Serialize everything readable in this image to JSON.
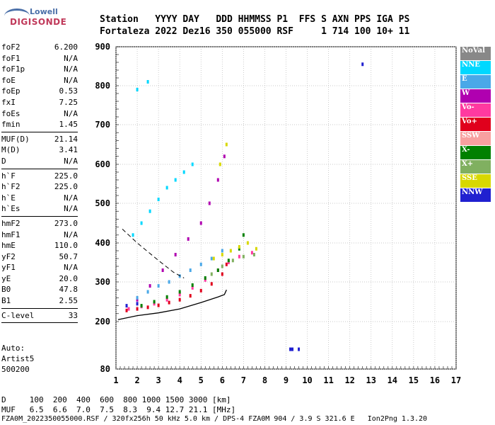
{
  "logo": {
    "top": "Lowell",
    "bottom": "DIGISONDE"
  },
  "header": {
    "line1": "Station   YYYY DAY   DDD HHMMSS P1  FFS S AXN PPS IGA PS",
    "line2": "Fortaleza 2022 Dez16 350 055000 RSF     1 714 100 10+ 11"
  },
  "params": [
    {
      "k": "foF2",
      "v": "6.200"
    },
    {
      "k": "foF1",
      "v": "N/A"
    },
    {
      "k": "foF1p",
      "v": "N/A"
    },
    {
      "k": "foE",
      "v": "N/A"
    },
    {
      "k": "foEp",
      "v": "0.53"
    },
    {
      "k": "fxI",
      "v": "7.25"
    },
    {
      "k": "foEs",
      "v": "N/A"
    },
    {
      "k": "fmin",
      "v": "1.45"
    },
    {
      "sep": true
    },
    {
      "k": "MUF(D)",
      "v": "21.14"
    },
    {
      "k": "M(D)",
      "v": "3.41"
    },
    {
      "k": "D",
      "v": "N/A"
    },
    {
      "sep": true
    },
    {
      "k": "h`F",
      "v": "225.0"
    },
    {
      "k": "h`F2",
      "v": "225.0"
    },
    {
      "k": "h`E",
      "v": "N/A"
    },
    {
      "k": "h`Es",
      "v": "N/A"
    },
    {
      "sep": true
    },
    {
      "k": "hmF2",
      "v": "273.0"
    },
    {
      "k": "hmF1",
      "v": "N/A"
    },
    {
      "k": "hmE",
      "v": "110.0"
    },
    {
      "k": "yF2",
      "v": "50.7"
    },
    {
      "k": "yF1",
      "v": "N/A"
    },
    {
      "k": "yE",
      "v": "20.0"
    },
    {
      "k": "B0",
      "v": "47.8"
    },
    {
      "k": "B1",
      "v": "2.55"
    },
    {
      "sep": true
    },
    {
      "k": "C-level",
      "v": "33"
    },
    {
      "sep": true
    }
  ],
  "auto": {
    "line1": "Auto:",
    "line2": "Artist5",
    "line3": "500200"
  },
  "legend": [
    {
      "label": "NoVal",
      "color": "#888888"
    },
    {
      "label": "NNE",
      "color": "#00d8ff"
    },
    {
      "label": "E",
      "color": "#4aa8e8"
    },
    {
      "label": "W",
      "color": "#b000b0"
    },
    {
      "label": "Vo-",
      "color": "#ff3aa0"
    },
    {
      "label": "Vo+",
      "color": "#e0001c"
    },
    {
      "label": "SSW",
      "color": "#f8a0a0"
    },
    {
      "label": "X-",
      "color": "#008000"
    },
    {
      "label": "X+",
      "color": "#80b060"
    },
    {
      "label": "SSE",
      "color": "#d8d800"
    },
    {
      "label": "NNW",
      "color": "#2020d0"
    }
  ],
  "footer": {
    "line1": "D     100  200  400  600  800 1000 1500 3000 [km]",
    "line2": "MUF   6.5  6.6  7.0  7.5  8.3  9.4 12.7 21.1 [MHz]",
    "line3": "FZA0M_2022350055000.RSF / 320fx256h 50 kHz 5.0 km / DPS-4 FZA0M 904 / 3.9 S 321.6 E   Ion2Png 1.3.20"
  },
  "chart_data": {
    "type": "scatter",
    "xlabel": "",
    "ylabel": "",
    "xlim": [
      1,
      17
    ],
    "ylim": [
      80,
      900
    ],
    "xticks": [
      1,
      2,
      3,
      4,
      5,
      6,
      7,
      8,
      9,
      10,
      11,
      12,
      13,
      14,
      15,
      16,
      17
    ],
    "yticks": [
      80,
      200,
      300,
      400,
      500,
      600,
      700,
      800,
      900
    ],
    "grid": true,
    "profile": {
      "name": "",
      "x": [
        1.1,
        2.0,
        3.0,
        4.0,
        5.0,
        5.8,
        6.1,
        6.2
      ],
      "y": [
        205,
        215,
        222,
        232,
        248,
        262,
        268,
        280
      ]
    },
    "dashed_profile": {
      "x": [
        1.3,
        2.0,
        3.0,
        3.7,
        4.2
      ],
      "y": [
        435,
        400,
        355,
        325,
        310
      ]
    },
    "series": [
      {
        "name": "Vo+",
        "x": [
          1.5,
          2.0,
          2.5,
          3.0,
          3.5,
          4.0,
          4.5,
          5.0,
          5.5,
          6.0,
          6.2
        ],
        "y": [
          228,
          232,
          236,
          241,
          248,
          255,
          265,
          278,
          295,
          320,
          345
        ]
      },
      {
        "name": "Vo-",
        "x": [
          1.6,
          2.2,
          2.8,
          3.4,
          4.0,
          4.6,
          5.2,
          5.8,
          6.3,
          6.8,
          7.4
        ],
        "y": [
          232,
          238,
          245,
          255,
          268,
          285,
          305,
          330,
          350,
          365,
          375
        ]
      },
      {
        "name": "W",
        "x": [
          2.0,
          2.6,
          3.2,
          3.8,
          4.4,
          5.0,
          5.4,
          5.8,
          6.1
        ],
        "y": [
          255,
          290,
          330,
          370,
          410,
          450,
          500,
          560,
          620
        ]
      },
      {
        "name": "X-",
        "x": [
          2.2,
          2.8,
          3.4,
          4.0,
          4.6,
          5.2,
          5.8,
          6.3,
          6.8,
          7.0
        ],
        "y": [
          240,
          250,
          262,
          275,
          292,
          310,
          330,
          355,
          385,
          420
        ]
      },
      {
        "name": "E",
        "x": [
          2.0,
          2.5,
          3.0,
          3.5,
          4.0,
          4.5,
          5.0,
          5.5,
          6.0
        ],
        "y": [
          260,
          275,
          290,
          300,
          315,
          330,
          345,
          360,
          380
        ]
      },
      {
        "name": "SSE",
        "x": [
          5.6,
          6.0,
          6.4,
          6.8,
          7.2,
          7.6,
          5.9,
          6.2
        ],
        "y": [
          360,
          370,
          380,
          390,
          400,
          385,
          600,
          650
        ]
      },
      {
        "name": "NNE",
        "x": [
          1.8,
          2.2,
          2.6,
          3.0,
          3.4,
          3.8,
          4.2,
          4.6,
          2.0,
          2.5
        ],
        "y": [
          420,
          450,
          480,
          510,
          540,
          560,
          580,
          600,
          790,
          810
        ]
      },
      {
        "name": "NNW",
        "x": [
          1.5,
          2.0,
          9.2,
          9.3,
          9.6,
          12.6
        ],
        "y": [
          240,
          245,
          130,
          130,
          130,
          855
        ]
      },
      {
        "name": "X+",
        "x": [
          5.5,
          6.0,
          6.5,
          7.0,
          7.5
        ],
        "y": [
          320,
          340,
          355,
          365,
          370
        ]
      }
    ]
  }
}
